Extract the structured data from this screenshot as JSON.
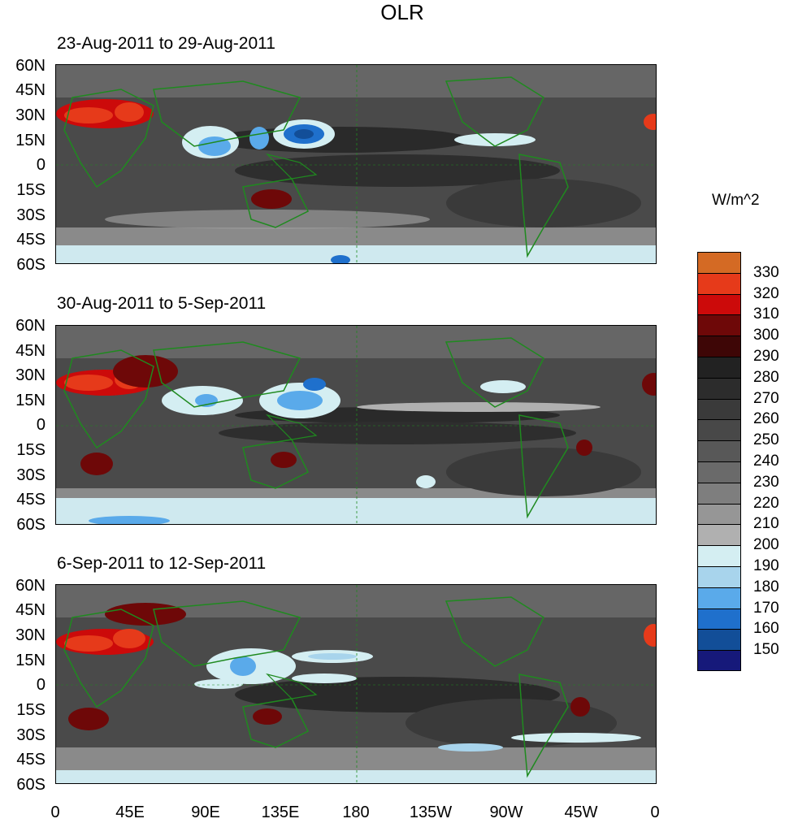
{
  "title": "OLR",
  "units": "W/m^2",
  "panels": [
    {
      "title": "23-Aug-2011 to 29-Aug-2011"
    },
    {
      "title": "30-Aug-2011 to 5-Sep-2011"
    },
    {
      "title": "6-Sep-2011 to 12-Sep-2011"
    }
  ],
  "lat_labels": [
    "60N",
    "45N",
    "30N",
    "15N",
    "0",
    "15S",
    "30S",
    "45S",
    "60S"
  ],
  "lon_labels": [
    "0",
    "45E",
    "90E",
    "135E",
    "180",
    "135W",
    "90W",
    "45W",
    "0"
  ],
  "colorbar": {
    "levels": [
      "330",
      "320",
      "310",
      "300",
      "290",
      "280",
      "270",
      "260",
      "250",
      "240",
      "230",
      "220",
      "210",
      "200",
      "190",
      "180",
      "170",
      "160",
      "150"
    ],
    "colors": [
      "#d46a24",
      "#e63a1a",
      "#cc0a0a",
      "#6e0808",
      "#3e0606",
      "#222222",
      "#2c2c2c",
      "#3a3a3a",
      "#484848",
      "#585858",
      "#6a6a6a",
      "#7e7e7e",
      "#969696",
      "#b0b0b0",
      "#d4eef2",
      "#a8d4ec",
      "#5aaaea",
      "#1f70cc",
      "#124e98",
      "#16197a"
    ]
  }
}
